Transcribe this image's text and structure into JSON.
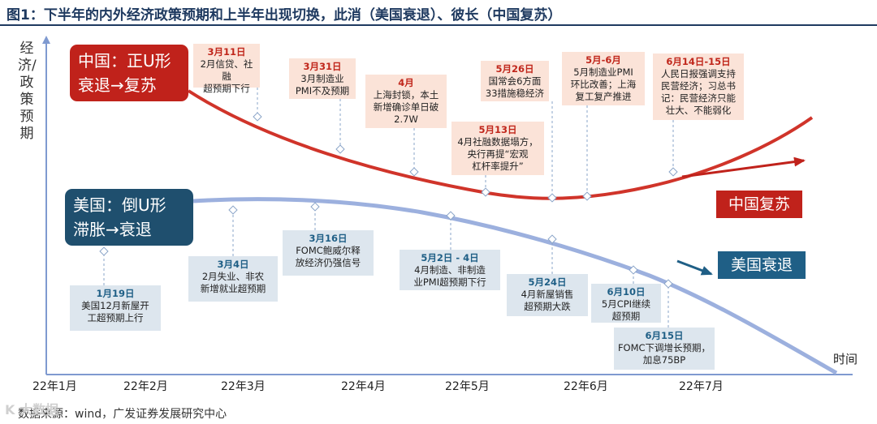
{
  "title": "图1：下半年的内外经济政策预期和上半年出现切换，此消（美国衰退）、彼长（中国复苏）",
  "source": "数据来源：wind，广发证券发展研究中心",
  "watermark": "K 大数据",
  "chart_data": {
    "type": "line",
    "ylabel": "经济/政策预期",
    "xlabel": "时间",
    "x_ticks": [
      "22年1月",
      "22年2月",
      "22年3月",
      "22年4月",
      "22年5月",
      "22年6月",
      "22年7月"
    ],
    "series": [
      {
        "name": "中国：正U形\n衰退→复苏",
        "color": "#d0342a",
        "shape": "U"
      },
      {
        "name": "美国：倒U形\n滞胀→衰退",
        "color": "#8fa6da",
        "shape": "inverted-U"
      }
    ],
    "trend_labels": {
      "china": "中国复苏",
      "us": "美国衰退"
    },
    "china_events": [
      {
        "date": "3月11日",
        "text": "2月信贷、社融\n超预期下行"
      },
      {
        "date": "3月31日",
        "text": "3月制造业\nPMI不及预期"
      },
      {
        "date": "4月",
        "text": "上海封锁，本土\n新增确诊单日破\n2.7W"
      },
      {
        "date": "5月13日",
        "text": "4月社融数据塌方，\n央行再提“宏观\n杠杆率提升”"
      },
      {
        "date": "5月26日",
        "text": "国常会6方面\n33措施稳经济"
      },
      {
        "date": "5月-6月",
        "text": "5月制造业PMI\n环比改善；上海\n复工复产推进"
      },
      {
        "date": "6月14日-15日",
        "text": "人民日报强调支持\n民营经济；习总书\n记：民营经济只能\n壮大、不能弱化"
      }
    ],
    "us_events": [
      {
        "date": "1月19日",
        "text": "美国12月新屋开\n工超预期上行"
      },
      {
        "date": "3月4日",
        "text": "2月失业、非农\n新增就业超预期"
      },
      {
        "date": "3月16日",
        "text": "FOMC鲍威尔释\n放经济仍强信号"
      },
      {
        "date": "5月2日 - 4日",
        "text": "4月制造、非制造\n业PMI超预期下行"
      },
      {
        "date": "5月24日",
        "text": "4月新屋销售\n超预期大跌"
      },
      {
        "date": "6月10日",
        "text": "5月CPI继续\n超预期"
      },
      {
        "date": "6月15日",
        "text": "FOMC下调增长预期，\n加息75BP"
      }
    ]
  }
}
